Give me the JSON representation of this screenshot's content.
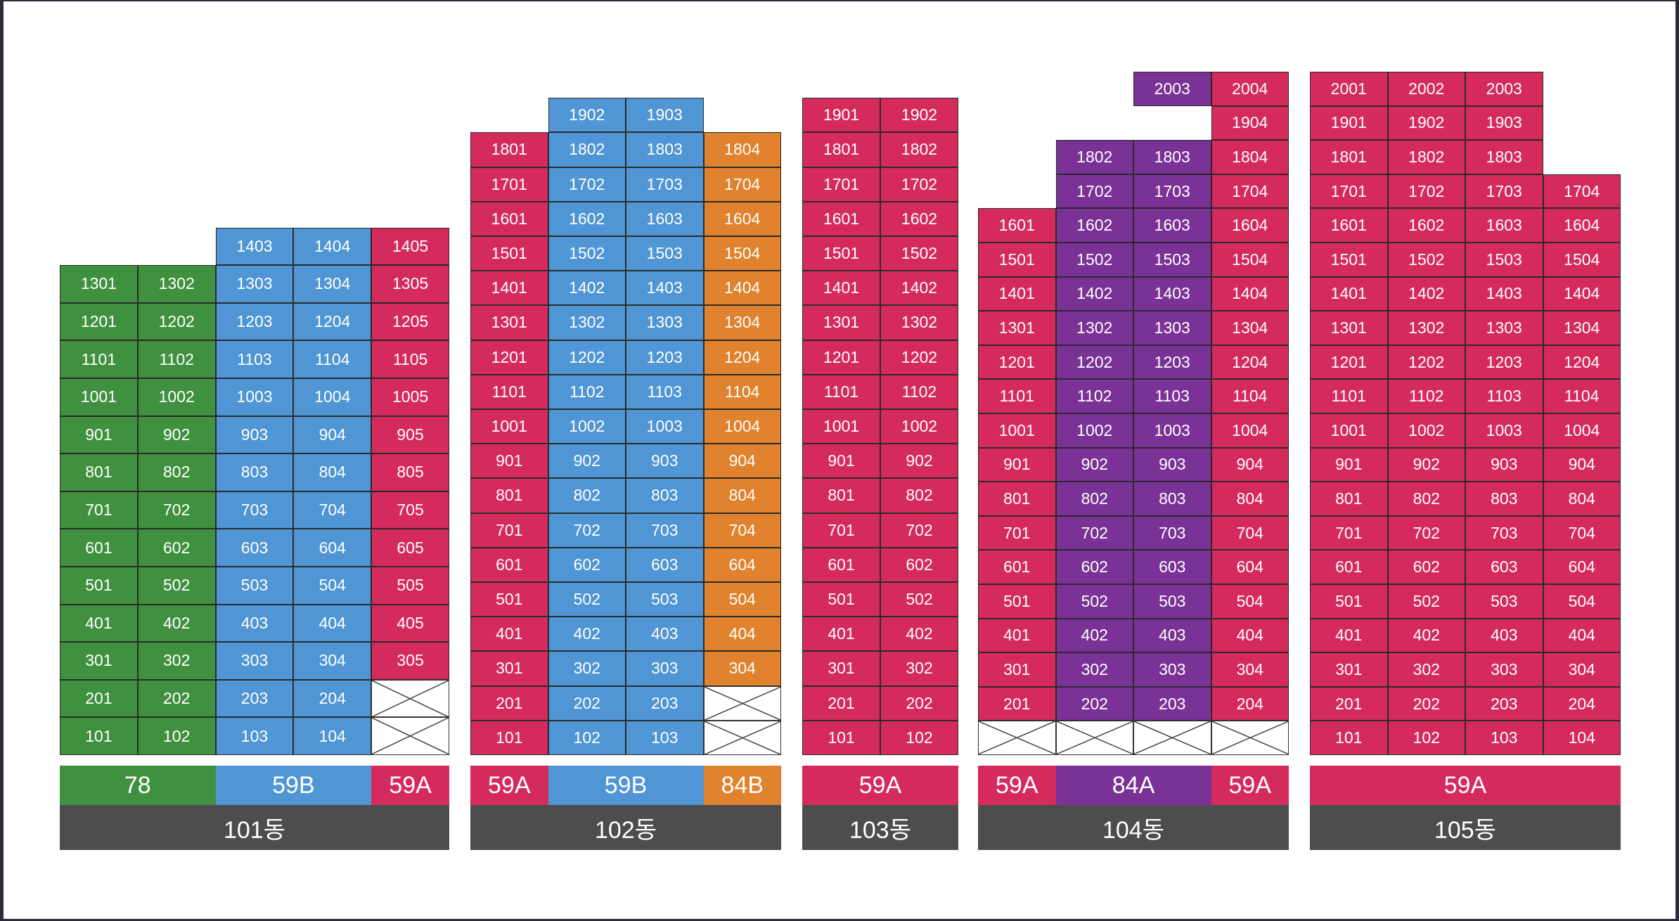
{
  "colors": {
    "78": "#40913f",
    "59B": "#5096d4",
    "59A": "#d52b5c",
    "84B": "#e0822e",
    "84A": "#7b3296",
    "name_bar": "#4d4d4f"
  },
  "buildings": [
    {
      "name": "101동",
      "columns": [
        {
          "type": "78",
          "top": 13,
          "empty": []
        },
        {
          "type": "78",
          "top": 13,
          "empty": []
        },
        {
          "type": "59B",
          "top": 14,
          "empty": []
        },
        {
          "type": "59B",
          "top": 14,
          "empty": []
        },
        {
          "type": "59A",
          "top": 14,
          "empty": [
            1,
            2
          ]
        }
      ],
      "segments": [
        {
          "label": "78",
          "type": "78",
          "span": 2
        },
        {
          "label": "59B",
          "type": "59B",
          "span": 2
        },
        {
          "label": "59A",
          "type": "59A",
          "span": 1
        }
      ]
    },
    {
      "name": "102동",
      "columns": [
        {
          "type": "59A",
          "top": 18,
          "empty": []
        },
        {
          "type": "59B",
          "top": 19,
          "empty": []
        },
        {
          "type": "59B",
          "top": 19,
          "empty": []
        },
        {
          "type": "84B",
          "top": 18,
          "empty": [
            1,
            2
          ]
        }
      ],
      "segments": [
        {
          "label": "59A",
          "type": "59A",
          "span": 1
        },
        {
          "label": "59B",
          "type": "59B",
          "span": 2
        },
        {
          "label": "84B",
          "type": "84B",
          "span": 1
        }
      ]
    },
    {
      "name": "103동",
      "columns": [
        {
          "type": "59A",
          "top": 19,
          "empty": []
        },
        {
          "type": "59A",
          "top": 19,
          "empty": []
        }
      ],
      "segments": [
        {
          "label": "59A",
          "type": "59A",
          "span": 2
        }
      ]
    },
    {
      "name": "104동",
      "columns": [
        {
          "type": "59A",
          "top": 16,
          "empty": [
            1
          ]
        },
        {
          "type": "84A",
          "top": 18,
          "empty": [
            1
          ]
        },
        {
          "type": "84A",
          "top": 20,
          "empty": [
            1
          ],
          "missing": [
            19
          ]
        },
        {
          "type": "59A",
          "top": 20,
          "empty": [
            1
          ]
        }
      ],
      "segments": [
        {
          "label": "59A",
          "type": "59A",
          "span": 1
        },
        {
          "label": "84A",
          "type": "84A",
          "span": 2
        },
        {
          "label": "59A",
          "type": "59A",
          "span": 1
        }
      ]
    },
    {
      "name": "105동",
      "columns": [
        {
          "type": "59A",
          "top": 20,
          "empty": []
        },
        {
          "type": "59A",
          "top": 20,
          "empty": []
        },
        {
          "type": "59A",
          "top": 20,
          "empty": []
        },
        {
          "type": "59A",
          "top": 17,
          "empty": []
        }
      ],
      "segments": [
        {
          "label": "59A",
          "type": "59A",
          "span": 4
        }
      ]
    }
  ]
}
